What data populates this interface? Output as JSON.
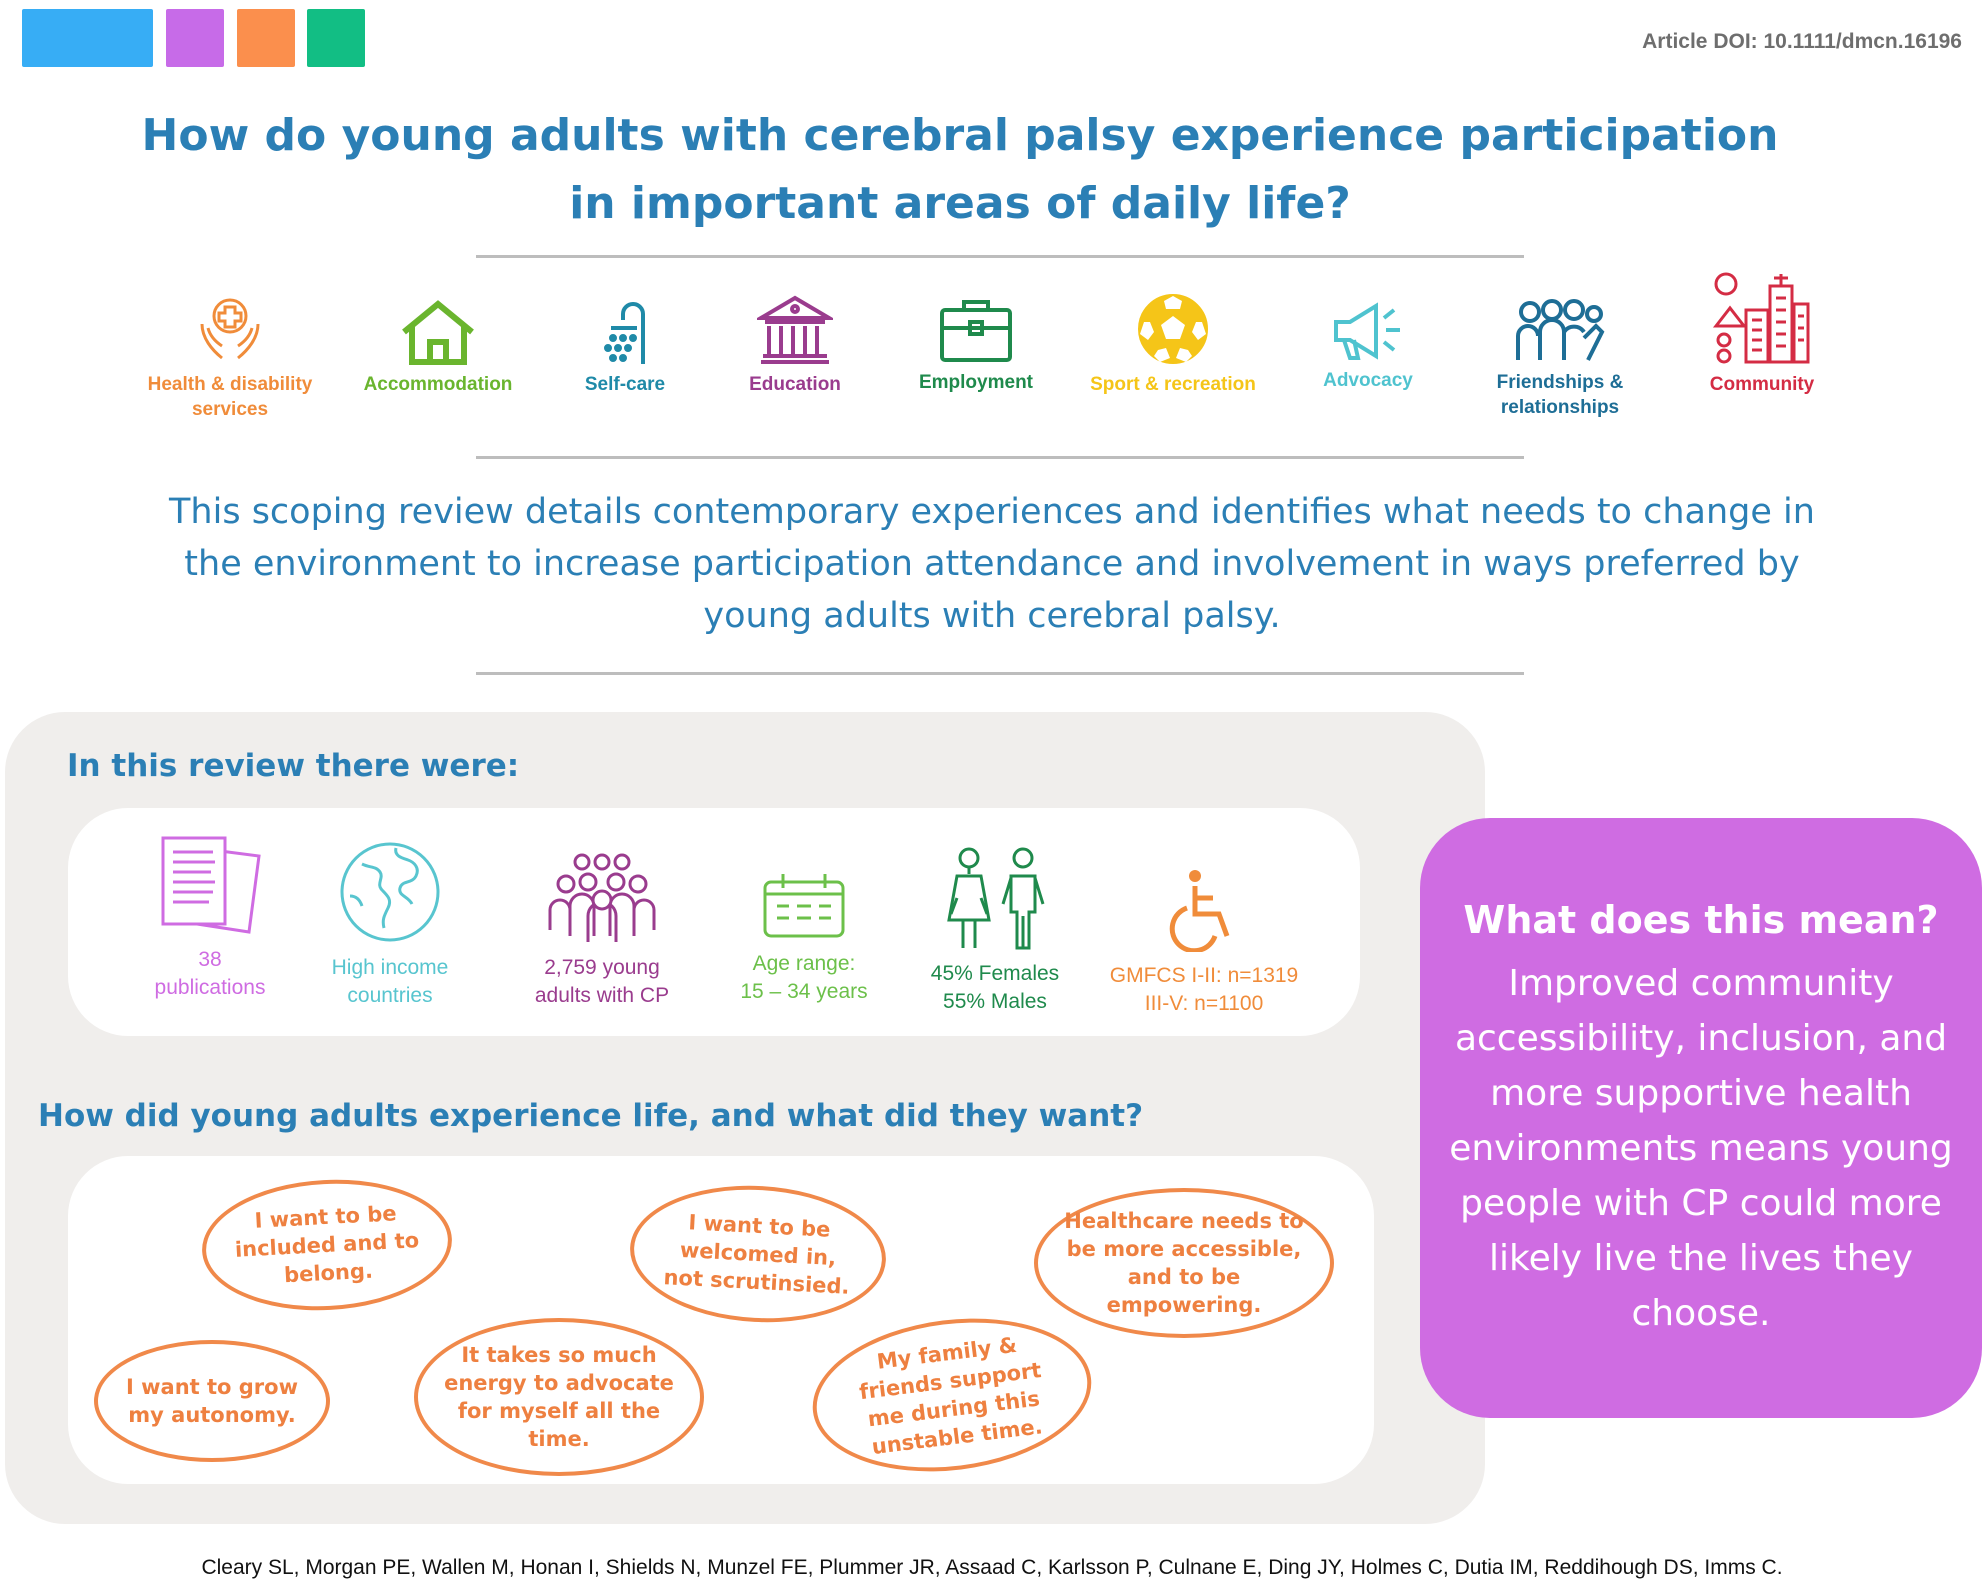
{
  "header": {
    "color_bars": [
      {
        "name": "blue",
        "color": "#37adf5"
      },
      {
        "name": "purple",
        "color": "#c76be8"
      },
      {
        "name": "orange",
        "color": "#fb8f4d"
      },
      {
        "name": "green",
        "color": "#12be84"
      }
    ],
    "doi": "Article DOI: 10.1111/dmcn.16196",
    "title": "How do young adults with cerebral palsy experience participation in important areas of daily life?"
  },
  "domains": [
    {
      "label": "Health & disability\nservices",
      "icon": "health-hands-icon",
      "color": "#f08c3a"
    },
    {
      "label": "Accommodation",
      "icon": "house-icon",
      "color": "#6ab52e"
    },
    {
      "label": "Self-care",
      "icon": "shower-icon",
      "color": "#1f8aa8"
    },
    {
      "label": "Education",
      "icon": "school-building-icon",
      "color": "#9a3c8e"
    },
    {
      "label": "Employment",
      "icon": "briefcase-icon",
      "color": "#1f8a4c"
    },
    {
      "label": "Sport & recreation",
      "icon": "soccer-ball-icon",
      "color": "#f5c518"
    },
    {
      "label": "Advocacy",
      "icon": "megaphone-icon",
      "color": "#4fc3cf"
    },
    {
      "label": "Friendships &\nrelationships",
      "icon": "group-icon",
      "color": "#1e6e96"
    },
    {
      "label": "Community",
      "icon": "city-icon",
      "color": "#d42c44"
    }
  ],
  "intro": "This scoping review details contemporary experiences and identifies what needs to change in the environment to increase participation attendance and involvement in ways preferred by young adults with cerebral palsy.",
  "review": {
    "heading": "In this review there were:",
    "stats": [
      {
        "text": "38\npublications",
        "icon": "documents-icon",
        "color": "#cf6ce2"
      },
      {
        "text": "High income\ncountries",
        "icon": "globe-icon",
        "color": "#58c5cf"
      },
      {
        "text": "2,759 young\nadults with CP",
        "icon": "people-group-icon",
        "color": "#9a3c8e"
      },
      {
        "text": "Age range:\n15 – 34 years",
        "icon": "calendar-icon",
        "color": "#6cc04a"
      },
      {
        "text": "45% Females\n55% Males",
        "icon": "female-male-icon",
        "color": "#1f8a4c"
      },
      {
        "text": "GMFCS I-II: n=1319\nIII-V: n=1100",
        "icon": "wheelchair-icon",
        "color": "#f08c3a"
      }
    ]
  },
  "experience": {
    "heading": "How did young adults experience life, and what did they want?",
    "quotes": [
      "I want to be included and to belong.",
      "I want to be welcomed in, not scrutinsied.",
      "Healthcare needs to be more accessible, and to be empowering.",
      "I want to grow my autonomy.",
      "It takes so much energy to advocate for myself all the time.",
      "My family & friends support me during this unstable time."
    ]
  },
  "meaning": {
    "title": "What does this mean?",
    "body": "Improved community accessibility, inclusion, and more supportive health environments means young people with CP could more likely live the lives they choose.",
    "color": "#cf6ce2"
  },
  "citation": "Cleary SL, Morgan PE, Wallen M, Honan I, Shields N, Munzel FE, Plummer JR, Assaad C, Karlsson P, Culnane E, Ding JY, Holmes C, Dutia IM, Reddihough DS, Imms C."
}
